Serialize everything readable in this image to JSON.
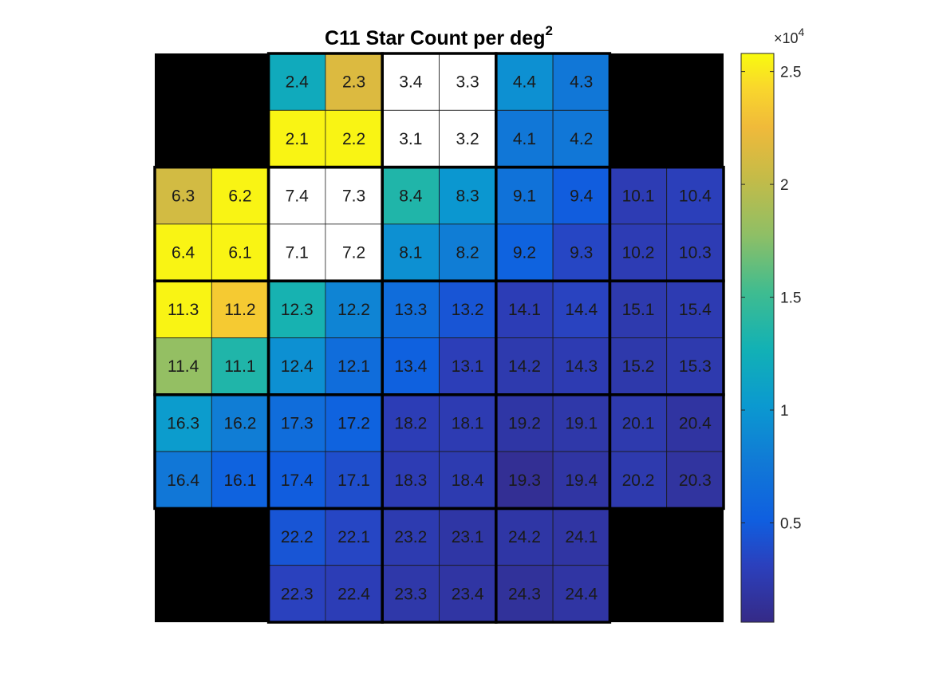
{
  "chart_data": {
    "type": "heatmap",
    "title": "C11 Star Count per deg",
    "title_superscript": "2",
    "colormap": "parula",
    "missing_color": "#000000",
    "saturated_color": "#ffffff",
    "grid_rows": 10,
    "grid_cols": 10,
    "colorbar": {
      "min": 600,
      "max": 25800,
      "ticks": [
        5000,
        10000,
        15000,
        20000,
        25000
      ],
      "tick_labels": [
        "0.5",
        "1",
        "1.5",
        "2",
        "2.5"
      ],
      "multiplier_label": "×10",
      "multiplier_exponent": "4"
    },
    "cells": [
      {
        "label": "2.4",
        "row": 0,
        "col": 2,
        "value": 12000
      },
      {
        "label": "2.3",
        "row": 0,
        "col": 3,
        "value": 21500
      },
      {
        "label": "3.4",
        "row": 0,
        "col": 4,
        "value": null
      },
      {
        "label": "3.3",
        "row": 0,
        "col": 5,
        "value": null
      },
      {
        "label": "4.4",
        "row": 0,
        "col": 6,
        "value": 9500
      },
      {
        "label": "4.3",
        "row": 0,
        "col": 7,
        "value": 7500
      },
      {
        "label": "2.1",
        "row": 1,
        "col": 2,
        "value": 25500
      },
      {
        "label": "2.2",
        "row": 1,
        "col": 3,
        "value": 25500
      },
      {
        "label": "3.1",
        "row": 1,
        "col": 4,
        "value": null
      },
      {
        "label": "3.2",
        "row": 1,
        "col": 5,
        "value": null
      },
      {
        "label": "4.1",
        "row": 1,
        "col": 6,
        "value": 7500
      },
      {
        "label": "4.2",
        "row": 1,
        "col": 7,
        "value": 7500
      },
      {
        "label": "6.3",
        "row": 2,
        "col": 0,
        "value": 21000
      },
      {
        "label": "6.2",
        "row": 2,
        "col": 1,
        "value": 25500
      },
      {
        "label": "7.4",
        "row": 2,
        "col": 2,
        "value": null
      },
      {
        "label": "7.3",
        "row": 2,
        "col": 3,
        "value": null
      },
      {
        "label": "8.4",
        "row": 2,
        "col": 4,
        "value": 13500
      },
      {
        "label": "8.3",
        "row": 2,
        "col": 5,
        "value": 10000
      },
      {
        "label": "9.1",
        "row": 2,
        "col": 6,
        "value": 7000
      },
      {
        "label": "9.4",
        "row": 2,
        "col": 7,
        "value": 5000
      },
      {
        "label": "10.1",
        "row": 2,
        "col": 8,
        "value": 2700
      },
      {
        "label": "10.4",
        "row": 2,
        "col": 9,
        "value": 3000
      },
      {
        "label": "6.4",
        "row": 3,
        "col": 0,
        "value": 25500
      },
      {
        "label": "6.1",
        "row": 3,
        "col": 1,
        "value": 25500
      },
      {
        "label": "7.1",
        "row": 3,
        "col": 2,
        "value": null
      },
      {
        "label": "7.2",
        "row": 3,
        "col": 3,
        "value": null
      },
      {
        "label": "8.1",
        "row": 3,
        "col": 4,
        "value": 9500
      },
      {
        "label": "8.2",
        "row": 3,
        "col": 5,
        "value": 8000
      },
      {
        "label": "9.2",
        "row": 3,
        "col": 6,
        "value": 5500
      },
      {
        "label": "9.3",
        "row": 3,
        "col": 7,
        "value": 3500
      },
      {
        "label": "10.2",
        "row": 3,
        "col": 8,
        "value": 2700
      },
      {
        "label": "10.3",
        "row": 3,
        "col": 9,
        "value": 2700
      },
      {
        "label": "11.3",
        "row": 4,
        "col": 0,
        "value": 25500
      },
      {
        "label": "11.2",
        "row": 4,
        "col": 1,
        "value": 23500
      },
      {
        "label": "12.3",
        "row": 4,
        "col": 2,
        "value": 13000
      },
      {
        "label": "12.2",
        "row": 4,
        "col": 3,
        "value": 8500
      },
      {
        "label": "13.3",
        "row": 4,
        "col": 4,
        "value": 6500
      },
      {
        "label": "13.2",
        "row": 4,
        "col": 5,
        "value": 4500
      },
      {
        "label": "14.1",
        "row": 4,
        "col": 6,
        "value": 2800
      },
      {
        "label": "14.4",
        "row": 4,
        "col": 7,
        "value": 3300
      },
      {
        "label": "15.1",
        "row": 4,
        "col": 8,
        "value": 2400
      },
      {
        "label": "15.4",
        "row": 4,
        "col": 9,
        "value": 2600
      },
      {
        "label": "11.4",
        "row": 5,
        "col": 0,
        "value": 18000
      },
      {
        "label": "11.1",
        "row": 5,
        "col": 1,
        "value": 13500
      },
      {
        "label": "12.4",
        "row": 5,
        "col": 2,
        "value": 9500
      },
      {
        "label": "12.1",
        "row": 5,
        "col": 3,
        "value": 6500
      },
      {
        "label": "13.4",
        "row": 5,
        "col": 4,
        "value": 5300
      },
      {
        "label": "13.1",
        "row": 5,
        "col": 5,
        "value": 2900
      },
      {
        "label": "14.2",
        "row": 5,
        "col": 6,
        "value": 2400
      },
      {
        "label": "14.3",
        "row": 5,
        "col": 7,
        "value": 2600
      },
      {
        "label": "15.2",
        "row": 5,
        "col": 8,
        "value": 2300
      },
      {
        "label": "15.3",
        "row": 5,
        "col": 9,
        "value": 2400
      },
      {
        "label": "16.3",
        "row": 6,
        "col": 0,
        "value": 10500
      },
      {
        "label": "16.2",
        "row": 6,
        "col": 1,
        "value": 8000
      },
      {
        "label": "17.3",
        "row": 6,
        "col": 2,
        "value": 6500
      },
      {
        "label": "17.2",
        "row": 6,
        "col": 3,
        "value": 5500
      },
      {
        "label": "18.2",
        "row": 6,
        "col": 4,
        "value": 2800
      },
      {
        "label": "18.1",
        "row": 6,
        "col": 5,
        "value": 2600
      },
      {
        "label": "19.2",
        "row": 6,
        "col": 6,
        "value": 2000
      },
      {
        "label": "19.1",
        "row": 6,
        "col": 7,
        "value": 2200
      },
      {
        "label": "20.1",
        "row": 6,
        "col": 8,
        "value": 2400
      },
      {
        "label": "20.4",
        "row": 6,
        "col": 9,
        "value": 1800
      },
      {
        "label": "16.4",
        "row": 7,
        "col": 0,
        "value": 7500
      },
      {
        "label": "16.1",
        "row": 7,
        "col": 1,
        "value": 5500
      },
      {
        "label": "17.4",
        "row": 7,
        "col": 2,
        "value": 5000
      },
      {
        "label": "17.1",
        "row": 7,
        "col": 3,
        "value": 4000
      },
      {
        "label": "18.3",
        "row": 7,
        "col": 4,
        "value": 2700
      },
      {
        "label": "18.4",
        "row": 7,
        "col": 5,
        "value": 2500
      },
      {
        "label": "19.3",
        "row": 7,
        "col": 6,
        "value": 1200
      },
      {
        "label": "19.4",
        "row": 7,
        "col": 7,
        "value": 1900
      },
      {
        "label": "20.2",
        "row": 7,
        "col": 8,
        "value": 2400
      },
      {
        "label": "20.3",
        "row": 7,
        "col": 9,
        "value": 1700
      },
      {
        "label": "22.2",
        "row": 8,
        "col": 2,
        "value": 4500
      },
      {
        "label": "22.1",
        "row": 8,
        "col": 3,
        "value": 3500
      },
      {
        "label": "23.2",
        "row": 8,
        "col": 4,
        "value": 2500
      },
      {
        "label": "23.1",
        "row": 8,
        "col": 5,
        "value": 2000
      },
      {
        "label": "24.2",
        "row": 8,
        "col": 6,
        "value": 2000
      },
      {
        "label": "24.1",
        "row": 8,
        "col": 7,
        "value": 1900
      },
      {
        "label": "22.3",
        "row": 9,
        "col": 2,
        "value": 3200
      },
      {
        "label": "22.4",
        "row": 9,
        "col": 3,
        "value": 2800
      },
      {
        "label": "23.3",
        "row": 9,
        "col": 4,
        "value": 2200
      },
      {
        "label": "23.4",
        "row": 9,
        "col": 5,
        "value": 1900
      },
      {
        "label": "24.3",
        "row": 9,
        "col": 6,
        "value": 1500
      },
      {
        "label": "24.4",
        "row": 9,
        "col": 7,
        "value": 1900
      }
    ]
  }
}
